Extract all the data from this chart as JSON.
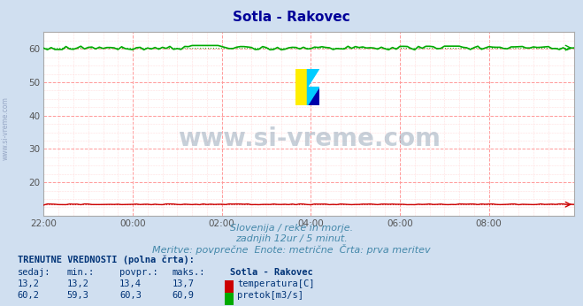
{
  "title": "Sotla - Rakovec",
  "title_color": "#000099",
  "bg_color": "#d0dff0",
  "plot_bg_color": "#ffffff",
  "grid_color_major": "#ff9999",
  "grid_color_minor": "#ffdddd",
  "tick_color": "#555555",
  "n_points": 144,
  "x_tick_labels": [
    "22:00",
    "00:00",
    "02:00",
    "04:00",
    "06:00",
    "08:00"
  ],
  "x_tick_positions": [
    0,
    24,
    48,
    72,
    96,
    120
  ],
  "ylim": [
    10,
    65
  ],
  "yticks": [
    20,
    30,
    40,
    50,
    60
  ],
  "temp_value": 13.2,
  "temp_min": 13.2,
  "temp_avg": 13.4,
  "temp_max": 13.7,
  "flow_value": 60.2,
  "flow_min": 59.3,
  "flow_avg": 60.3,
  "flow_max": 60.9,
  "temp_color": "#cc0000",
  "flow_color": "#00aa00",
  "subtitle_line1": "Slovenija / reke in morje.",
  "subtitle_line2": "zadnjih 12ur / 5 minut.",
  "subtitle_line3": "Meritve: povprečne  Enote: metrične  Črta: prva meritev",
  "subtitle_color": "#4488aa",
  "table_header": "TRENUTNE VREDNOSTI (polna črta):",
  "col_headers": [
    "sedaj:",
    "min.:",
    "povpr.:",
    "maks.:",
    "Sotla - Rakovec"
  ],
  "watermark": "www.si-vreme.com",
  "side_text": "www.si-vreme.com",
  "logo_colors": [
    "#ffee00",
    "#00ccff",
    "#0000aa"
  ],
  "temp_label": "temperatura[C]",
  "flow_label": "pretok[m3/s]"
}
